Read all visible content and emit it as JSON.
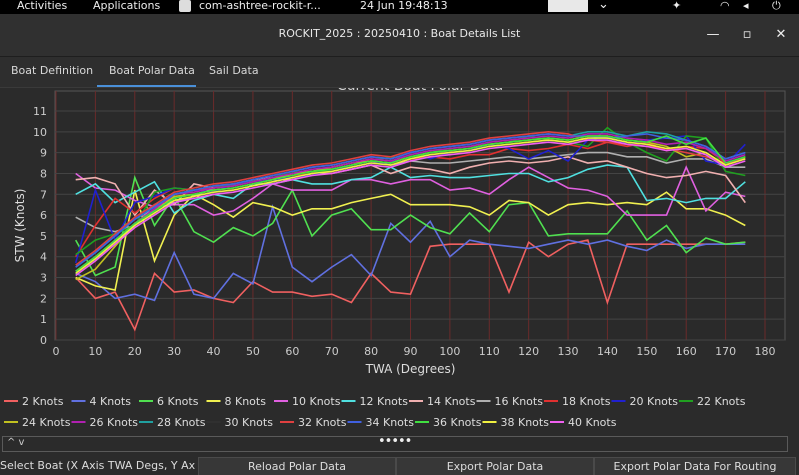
{
  "topbar": {
    "activities": "Activities",
    "applications": "Applications",
    "app_name": "com-ashtree-rockit-r...",
    "clock": "24 Jun  19:48:13"
  },
  "window": {
    "title": "ROCKIT_2025 : 20250410 : Boat Details List",
    "minimize": "—",
    "maximize": "▫",
    "close": "✕"
  },
  "tabs": [
    {
      "label": "Boat Definition"
    },
    {
      "label": "Boat Polar Data",
      "active": true
    },
    {
      "label": "Sail Data"
    }
  ],
  "chart_data": {
    "type": "line",
    "title": "Current Boat Polar Data",
    "xlabel": "TWA (Degrees)",
    "ylabel": "STW (Knots)",
    "xlim": [
      0,
      180
    ],
    "ylim": [
      0,
      11
    ],
    "xticks": [
      0,
      10,
      20,
      30,
      40,
      50,
      60,
      70,
      80,
      90,
      100,
      110,
      120,
      130,
      140,
      150,
      160,
      170,
      180
    ],
    "yticks": [
      0,
      1,
      2,
      3,
      4,
      5,
      6,
      7,
      8,
      9,
      10,
      11
    ],
    "grid": true,
    "legend_position": "bottom",
    "x": [
      5,
      10,
      15,
      20,
      25,
      30,
      35,
      40,
      45,
      50,
      55,
      60,
      65,
      70,
      75,
      80,
      85,
      90,
      95,
      100,
      105,
      110,
      115,
      120,
      125,
      130,
      135,
      140,
      145,
      150,
      155,
      160,
      165,
      170,
      175
    ],
    "series": [
      {
        "name": "2 Knots",
        "color": "#f06060",
        "values": [
          3.0,
          2.0,
          2.3,
          0.5,
          3.2,
          2.3,
          2.4,
          2.0,
          1.8,
          2.8,
          2.3,
          2.3,
          2.1,
          2.2,
          1.8,
          3.2,
          2.3,
          2.2,
          4.5,
          4.6,
          4.6,
          4.6,
          2.3,
          4.7,
          4.0,
          4.6,
          4.8,
          1.8,
          4.6,
          4.6,
          4.6,
          4.6,
          4.6,
          4.6,
          4.7
        ]
      },
      {
        "name": "4 Knots",
        "color": "#6070e0",
        "values": [
          3.2,
          2.8,
          2.0,
          2.2,
          1.9,
          4.2,
          2.2,
          2.0,
          3.2,
          2.7,
          6.4,
          3.5,
          2.8,
          3.5,
          4.1,
          3.1,
          5.6,
          4.7,
          5.7,
          4.0,
          4.8,
          4.6,
          4.5,
          4.4,
          4.6,
          4.8,
          4.6,
          4.8,
          4.5,
          4.3,
          4.8,
          4.4,
          4.6,
          4.6,
          4.6
        ]
      },
      {
        "name": "6 Knots",
        "color": "#50e050",
        "values": [
          4.8,
          3.1,
          3.5,
          7.8,
          5.5,
          6.9,
          5.2,
          4.7,
          5.4,
          5.0,
          5.6,
          7.2,
          5.0,
          6.0,
          6.3,
          5.3,
          5.3,
          6.0,
          5.4,
          5.1,
          6.1,
          5.2,
          6.5,
          6.6,
          5.0,
          5.1,
          5.1,
          5.1,
          6.2,
          4.8,
          5.5,
          4.2,
          4.9,
          4.6,
          4.7
        ]
      },
      {
        "name": "8 Knots",
        "color": "#f0f050",
        "values": [
          3.0,
          2.6,
          2.4,
          7.2,
          3.8,
          6.0,
          7.0,
          6.5,
          5.9,
          6.6,
          6.4,
          6.0,
          6.3,
          6.3,
          6.6,
          6.8,
          7.0,
          6.5,
          6.5,
          6.5,
          6.4,
          6.0,
          6.7,
          6.6,
          6.0,
          6.5,
          6.6,
          6.5,
          6.6,
          6.5,
          7.1,
          6.3,
          6.3,
          6.0,
          5.5
        ]
      },
      {
        "name": "10 Knots",
        "color": "#e060e0",
        "values": [
          8.0,
          7.3,
          7.2,
          6.7,
          6.4,
          6.5,
          6.5,
          6.0,
          6.2,
          6.8,
          7.5,
          7.2,
          7.2,
          7.2,
          7.7,
          7.7,
          7.5,
          7.7,
          7.7,
          7.2,
          7.3,
          7.0,
          7.7,
          8.3,
          7.8,
          7.3,
          7.2,
          6.9,
          6.0,
          6.0,
          6.0,
          8.3,
          6.2,
          7.1,
          6.9
        ]
      },
      {
        "name": "12 Knots",
        "color": "#50e0e0",
        "values": [
          7.0,
          7.5,
          6.6,
          7.1,
          7.6,
          6.1,
          6.7,
          7.0,
          6.8,
          7.5,
          7.5,
          7.7,
          7.5,
          7.5,
          7.7,
          7.8,
          8.3,
          7.8,
          7.9,
          7.8,
          7.8,
          7.9,
          8.0,
          8.0,
          7.6,
          7.8,
          8.2,
          8.4,
          8.3,
          6.7,
          6.8,
          6.6,
          6.8,
          6.8,
          7.6
        ]
      },
      {
        "name": "14 Knots",
        "color": "#f0b0b0",
        "values": [
          7.7,
          7.8,
          7.5,
          6.0,
          7.2,
          6.5,
          7.5,
          7.3,
          7.5,
          7.6,
          7.7,
          7.7,
          8.0,
          8.0,
          8.2,
          8.4,
          8.0,
          8.3,
          8.2,
          8.0,
          8.3,
          8.5,
          8.6,
          8.5,
          8.6,
          8.8,
          8.5,
          8.6,
          8.3,
          8.0,
          7.8,
          7.9,
          8.1,
          7.9,
          6.6
        ]
      },
      {
        "name": "16 Knots",
        "color": "#b0b0b0",
        "values": [
          5.9,
          5.4,
          5.2,
          5.5,
          6.5,
          6.6,
          6.9,
          7.3,
          7.4,
          7.7,
          7.8,
          7.9,
          8.1,
          8.2,
          8.4,
          8.6,
          8.4,
          8.6,
          8.5,
          8.5,
          8.6,
          8.7,
          8.8,
          8.7,
          8.8,
          8.9,
          9.0,
          9.0,
          8.8,
          8.8,
          8.5,
          8.7,
          8.7,
          8.3,
          8.3
        ]
      },
      {
        "name": "18 Knots",
        "color": "#e03030",
        "values": [
          4.0,
          5.5,
          6.8,
          6.1,
          6.8,
          7.3,
          7.2,
          7.3,
          7.5,
          7.6,
          7.8,
          7.9,
          8.0,
          8.3,
          8.5,
          8.7,
          8.6,
          8.7,
          8.8,
          8.7,
          8.9,
          8.9,
          9.2,
          9.1,
          9.2,
          9.4,
          9.2,
          9.5,
          9.3,
          9.5,
          9.1,
          9.3,
          9.2,
          8.5,
          8.7
        ]
      },
      {
        "name": "20 Knots",
        "color": "#2020d0",
        "values": [
          3.7,
          7.2,
          4.8,
          6.6,
          6.9,
          7.3,
          7.2,
          7.1,
          7.5,
          7.6,
          7.7,
          7.8,
          7.9,
          8.2,
          8.3,
          8.5,
          8.5,
          9.1,
          8.7,
          9.0,
          9.1,
          9.4,
          9.2,
          8.7,
          9.1,
          8.6,
          9.6,
          9.8,
          9.4,
          9.6,
          9.7,
          9.8,
          8.6,
          8.4,
          9.4
        ]
      },
      {
        "name": "22 Knots",
        "color": "#20a020",
        "values": [
          4.1,
          4.8,
          5.1,
          5.5,
          7.1,
          7.3,
          7.2,
          7.4,
          7.4,
          7.6,
          7.8,
          8.1,
          8.0,
          8.2,
          8.4,
          8.6,
          8.8,
          8.7,
          9.0,
          9.2,
          9.3,
          9.4,
          9.5,
          9.8,
          9.6,
          9.5,
          9.3,
          10.2,
          9.5,
          9.0,
          8.6,
          9.8,
          9.7,
          8.1,
          7.9
        ]
      },
      {
        "name": "24 Knots",
        "color": "#c0c020",
        "values": [
          2.9,
          3.4,
          4.5,
          5.6,
          6.2,
          6.9,
          7.0,
          7.2,
          7.3,
          7.5,
          7.7,
          8.0,
          8.1,
          8.3,
          8.5,
          8.6,
          8.5,
          8.8,
          9.0,
          9.1,
          9.2,
          9.4,
          9.5,
          9.6,
          9.7,
          9.6,
          9.8,
          9.8,
          9.6,
          9.5,
          9.3,
          8.8,
          9.0,
          8.4,
          8.8
        ]
      },
      {
        "name": "26 Knots",
        "color": "#b020b0",
        "values": [
          3.3,
          4.0,
          4.8,
          5.6,
          6.3,
          7.0,
          7.1,
          7.3,
          7.4,
          7.6,
          7.8,
          8.0,
          8.2,
          8.3,
          8.5,
          8.7,
          8.6,
          8.9,
          9.1,
          9.2,
          9.3,
          9.5,
          9.6,
          9.7,
          9.8,
          9.7,
          9.9,
          9.9,
          9.7,
          9.6,
          9.4,
          9.5,
          9.2,
          8.6,
          8.9
        ]
      },
      {
        "name": "28 Knots",
        "color": "#20a0a0",
        "values": [
          3.5,
          4.2,
          5.0,
          5.8,
          6.4,
          7.0,
          7.2,
          7.4,
          7.5,
          7.7,
          7.9,
          8.1,
          8.3,
          8.4,
          8.6,
          8.8,
          8.7,
          9.0,
          9.2,
          9.3,
          9.4,
          9.6,
          9.7,
          9.8,
          9.9,
          9.8,
          10.0,
          10.0,
          9.8,
          10.0,
          9.9,
          9.6,
          9.3,
          8.7,
          9.0
        ]
      },
      {
        "name": "30 Knots",
        "color": "#303030",
        "values": [
          3.4,
          4.1,
          4.9,
          5.7,
          6.3,
          6.9,
          7.1,
          7.3,
          7.4,
          7.6,
          7.8,
          8.0,
          8.2,
          8.3,
          8.5,
          8.7,
          8.6,
          8.9,
          9.1,
          9.2,
          9.3,
          9.5,
          9.6,
          9.7,
          9.8,
          9.7,
          9.9,
          9.9,
          9.7,
          9.6,
          9.4,
          9.5,
          9.2,
          8.6,
          8.9
        ]
      },
      {
        "name": "32 Knots",
        "color": "#e04040",
        "values": [
          3.6,
          4.3,
          5.1,
          5.9,
          6.5,
          7.1,
          7.3,
          7.5,
          7.6,
          7.8,
          8.0,
          8.2,
          8.4,
          8.5,
          8.7,
          8.9,
          8.8,
          9.1,
          9.3,
          9.4,
          9.5,
          9.7,
          9.8,
          9.9,
          10.0,
          9.9,
          9.6,
          9.5,
          9.4,
          9.3,
          9.2,
          9.0,
          8.8,
          8.5,
          8.7
        ]
      },
      {
        "name": "34 Knots",
        "color": "#4060e0",
        "values": [
          3.5,
          4.2,
          5.0,
          5.8,
          6.4,
          7.0,
          7.2,
          7.4,
          7.5,
          7.7,
          7.9,
          8.1,
          8.3,
          8.4,
          8.6,
          8.8,
          8.7,
          9.0,
          9.2,
          9.3,
          9.4,
          9.6,
          9.7,
          9.8,
          9.9,
          9.8,
          9.8,
          9.7,
          9.8,
          9.9,
          9.7,
          9.6,
          9.3,
          8.7,
          9.0
        ]
      },
      {
        "name": "36 Knots",
        "color": "#40e040",
        "values": [
          3.3,
          4.0,
          4.8,
          5.6,
          6.2,
          6.8,
          7.0,
          7.2,
          7.3,
          7.5,
          7.7,
          7.9,
          8.1,
          8.2,
          8.4,
          8.6,
          8.5,
          8.8,
          9.0,
          9.1,
          9.2,
          9.4,
          9.5,
          9.6,
          9.7,
          9.6,
          9.8,
          9.8,
          9.6,
          9.5,
          9.8,
          9.4,
          9.7,
          8.5,
          8.8
        ]
      },
      {
        "name": "38 Knots",
        "color": "#f0f040",
        "values": [
          3.2,
          3.9,
          4.7,
          5.5,
          6.1,
          6.7,
          6.9,
          7.1,
          7.2,
          7.4,
          7.6,
          7.8,
          8.0,
          8.1,
          8.3,
          8.5,
          8.4,
          8.7,
          8.9,
          9.0,
          9.1,
          9.3,
          9.4,
          9.5,
          9.6,
          9.5,
          9.7,
          9.7,
          9.5,
          9.4,
          9.2,
          9.3,
          9.0,
          8.4,
          8.7
        ]
      },
      {
        "name": "40 Knots",
        "color": "#f060f0",
        "values": [
          3.1,
          3.8,
          4.6,
          5.4,
          6.0,
          6.6,
          6.8,
          7.0,
          7.1,
          7.3,
          7.5,
          7.7,
          7.9,
          8.0,
          8.2,
          8.4,
          8.3,
          8.6,
          8.8,
          8.9,
          9.0,
          9.2,
          9.3,
          9.4,
          9.5,
          9.4,
          9.6,
          9.6,
          9.4,
          9.3,
          9.1,
          9.2,
          8.9,
          8.3,
          8.6
        ]
      }
    ]
  },
  "splitter": {
    "handle": "•••••",
    "arrows": "^ v"
  },
  "status": {
    "hint": "Select Boat (X Axis TWA Degs, Y Axis T...",
    "reload": "Reload Polar Data",
    "export": "Export Polar Data",
    "export_routing": "Export Polar Data For Routing"
  }
}
